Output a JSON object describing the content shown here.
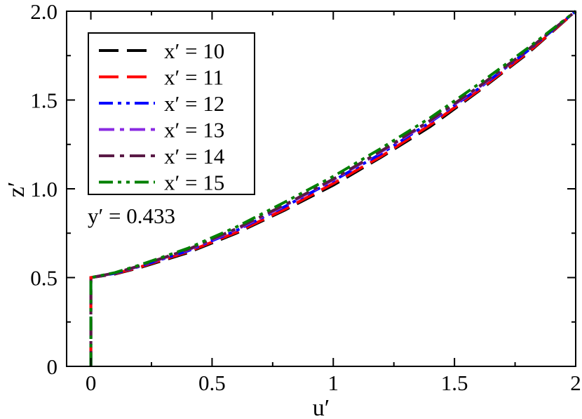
{
  "chart_data": {
    "type": "line",
    "title": "",
    "xlabel": "u′",
    "ylabel": "z′",
    "xlim": [
      -0.1,
      2.0
    ],
    "ylim": [
      0,
      2.0
    ],
    "x_ticks": [
      0,
      0.5,
      1,
      1.5,
      2
    ],
    "x_tick_labels": [
      "0",
      "0.5",
      "1",
      "1.5",
      "2"
    ],
    "y_ticks": [
      0,
      0.5,
      1.0,
      1.5,
      2.0
    ],
    "y_tick_labels": [
      "0",
      "0.5",
      "1.0",
      "1.5",
      "2.0"
    ],
    "grid": false,
    "legend_position": "top-left",
    "annotation": "y′ = 0.433",
    "series": [
      {
        "name": "x′ = 10",
        "color": "#000000",
        "dash": "long-dash",
        "x": [
          0,
          0,
          0.1,
          0.2,
          0.4,
          0.6,
          0.8,
          1.0,
          1.2,
          1.4,
          1.6,
          1.8,
          2.0
        ],
        "y": [
          0,
          0.5,
          0.52,
          0.555,
          0.64,
          0.75,
          0.88,
          1.02,
          1.18,
          1.35,
          1.55,
          1.76,
          2.0
        ]
      },
      {
        "name": "x′ = 11",
        "color": "#ff0000",
        "dash": "long-dash",
        "x": [
          0,
          0,
          0.1,
          0.2,
          0.4,
          0.6,
          0.8,
          1.0,
          1.2,
          1.4,
          1.6,
          1.8,
          2.0
        ],
        "y": [
          0,
          0.5,
          0.522,
          0.558,
          0.645,
          0.755,
          0.885,
          1.03,
          1.185,
          1.36,
          1.555,
          1.765,
          2.0
        ]
      },
      {
        "name": "x′ = 12",
        "color": "#0000ff",
        "dash": "dash-dot-dot",
        "x": [
          0,
          0,
          0.1,
          0.2,
          0.4,
          0.6,
          0.8,
          1.0,
          1.2,
          1.4,
          1.6,
          1.8,
          2.0
        ],
        "y": [
          0,
          0.5,
          0.524,
          0.562,
          0.65,
          0.765,
          0.9,
          1.045,
          1.2,
          1.375,
          1.565,
          1.775,
          2.0
        ]
      },
      {
        "name": "x′ = 13",
        "color": "#8a2be2",
        "dash": "dash-dot",
        "x": [
          0,
          0,
          0.1,
          0.2,
          0.4,
          0.6,
          0.8,
          1.0,
          1.2,
          1.4,
          1.6,
          1.8,
          2.0
        ],
        "y": [
          0,
          0.5,
          0.525,
          0.564,
          0.655,
          0.77,
          0.905,
          1.05,
          1.21,
          1.38,
          1.57,
          1.78,
          2.0
        ]
      },
      {
        "name": "x′ = 14",
        "color": "#5a1a46",
        "dash": "dash-dot",
        "x": [
          0,
          0,
          0.1,
          0.2,
          0.4,
          0.6,
          0.8,
          1.0,
          1.2,
          1.4,
          1.6,
          1.8,
          2.0
        ],
        "y": [
          0,
          0.5,
          0.526,
          0.566,
          0.658,
          0.775,
          0.91,
          1.055,
          1.215,
          1.385,
          1.575,
          1.78,
          2.0
        ]
      },
      {
        "name": "x′ = 15",
        "color": "#008000",
        "dash": "dash-dot-dot",
        "x": [
          0,
          0,
          0.1,
          0.2,
          0.4,
          0.6,
          0.8,
          1.0,
          1.2,
          1.4,
          1.6,
          1.8,
          2.0
        ],
        "y": [
          0,
          0.5,
          0.528,
          0.57,
          0.665,
          0.785,
          0.925,
          1.07,
          1.23,
          1.4,
          1.59,
          1.79,
          2.0
        ]
      }
    ]
  }
}
